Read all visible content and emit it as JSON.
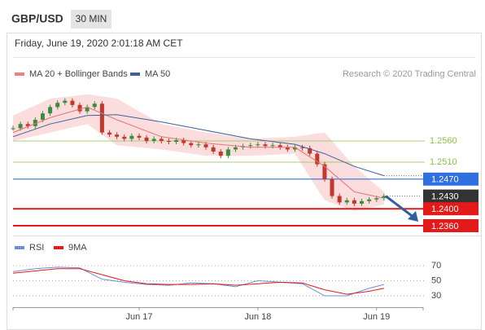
{
  "header": {
    "symbol": "GBP/USD",
    "interval": "30 MIN",
    "datetime": "Friday, June 19, 2020 2:01:18 AM CET",
    "credit": "Research © 2020 Trading Central"
  },
  "chart_data": [
    {
      "type": "candlestick",
      "legend": [
        "MA 20 + Bollinger Bands",
        "MA 50"
      ],
      "color_up": "#3a8d3a",
      "color_down": "#c0392b",
      "xlim": [
        0,
        55.5
      ],
      "xticks": [
        {
          "value": 17,
          "label": "Jun 17"
        },
        {
          "value": 33,
          "label": "Jun 18"
        },
        {
          "value": 49,
          "label": "Jun 19"
        }
      ],
      "ylim": [
        1.2345,
        1.268
      ],
      "values": [
        1.259,
        1.26,
        1.2595,
        1.261,
        1.2625,
        1.264,
        1.265,
        1.2655,
        1.2645,
        1.263,
        1.264,
        1.2648,
        1.258,
        1.2575,
        1.257,
        1.2565,
        1.2572,
        1.2568,
        1.256,
        1.2565,
        1.256,
        1.2558,
        1.2562,
        1.2555,
        1.255,
        1.2552,
        1.2545,
        1.2535,
        1.2525,
        1.254,
        1.2545,
        1.2548,
        1.255,
        1.2552,
        1.2548,
        1.255,
        1.2545,
        1.254,
        1.2545,
        1.2543,
        1.253,
        1.2505,
        1.247,
        1.243,
        1.2415,
        1.242,
        1.2412,
        1.2418,
        1.2422,
        1.2425,
        1.243
      ],
      "series": [
        {
          "name": "MA 20",
          "color": "#e57373",
          "x": [
            0,
            5,
            10,
            14,
            20,
            26,
            32,
            38,
            42,
            46,
            50
          ],
          "values": [
            1.258,
            1.2615,
            1.264,
            1.261,
            1.257,
            1.2555,
            1.2545,
            1.2545,
            1.25,
            1.244,
            1.2425
          ]
        },
        {
          "name": "MA 50",
          "color": "#3f5f9f",
          "x": [
            0,
            5,
            10,
            14,
            20,
            26,
            32,
            38,
            42,
            46,
            50
          ],
          "values": [
            1.257,
            1.26,
            1.262,
            1.2622,
            1.2605,
            1.2585,
            1.2565,
            1.2552,
            1.253,
            1.25,
            1.2478
          ]
        }
      ],
      "band": {
        "color": "#fbd5d5",
        "x": [
          0,
          5,
          10,
          14,
          20,
          26,
          32,
          38,
          42,
          46,
          50
        ],
        "upper": [
          1.262,
          1.266,
          1.267,
          1.266,
          1.26,
          1.258,
          1.2565,
          1.257,
          1.258,
          1.25,
          1.244
        ],
        "lower": [
          1.256,
          1.258,
          1.26,
          1.255,
          1.254,
          1.2525,
          1.2525,
          1.253,
          1.242,
          1.2395,
          1.241
        ]
      },
      "levels": [
        {
          "value": 1.256,
          "label": "1.2560",
          "color": "#8bc34a",
          "style": "text"
        },
        {
          "value": 1.251,
          "label": "1.2510",
          "color": "#8bc34a",
          "style": "text"
        },
        {
          "value": 1.247,
          "label": "1.2470",
          "color": "#2f6fe0",
          "style": "box"
        },
        {
          "value": 1.243,
          "label": "1.2430",
          "color": "#333333",
          "style": "box"
        },
        {
          "value": 1.24,
          "label": "1.2400",
          "color": "#e41a1a",
          "style": "box"
        },
        {
          "value": 1.236,
          "label": "1.2360",
          "color": "#e41a1a",
          "style": "box"
        }
      ]
    },
    {
      "type": "line",
      "xlim": [
        0,
        55.5
      ],
      "ylim": [
        15,
        95
      ],
      "yticks": [
        30,
        50,
        70
      ],
      "series": [
        {
          "name": "RSI",
          "color": "#6a8fd8",
          "x": [
            0,
            3,
            6,
            9,
            12,
            15,
            18,
            21,
            24,
            27,
            30,
            33,
            36,
            39,
            42,
            45,
            48,
            50
          ],
          "values": [
            62,
            66,
            68,
            67,
            52,
            48,
            45,
            44,
            47,
            46,
            42,
            50,
            48,
            46,
            30,
            30,
            40,
            45
          ]
        },
        {
          "name": "9MA",
          "color": "#e41a1a",
          "x": [
            0,
            3,
            6,
            9,
            12,
            15,
            18,
            21,
            24,
            27,
            30,
            33,
            36,
            39,
            42,
            45,
            48,
            50
          ],
          "values": [
            60,
            63,
            66,
            66,
            58,
            50,
            46,
            45,
            45,
            46,
            44,
            46,
            48,
            47,
            38,
            32,
            36,
            40
          ]
        }
      ]
    }
  ]
}
